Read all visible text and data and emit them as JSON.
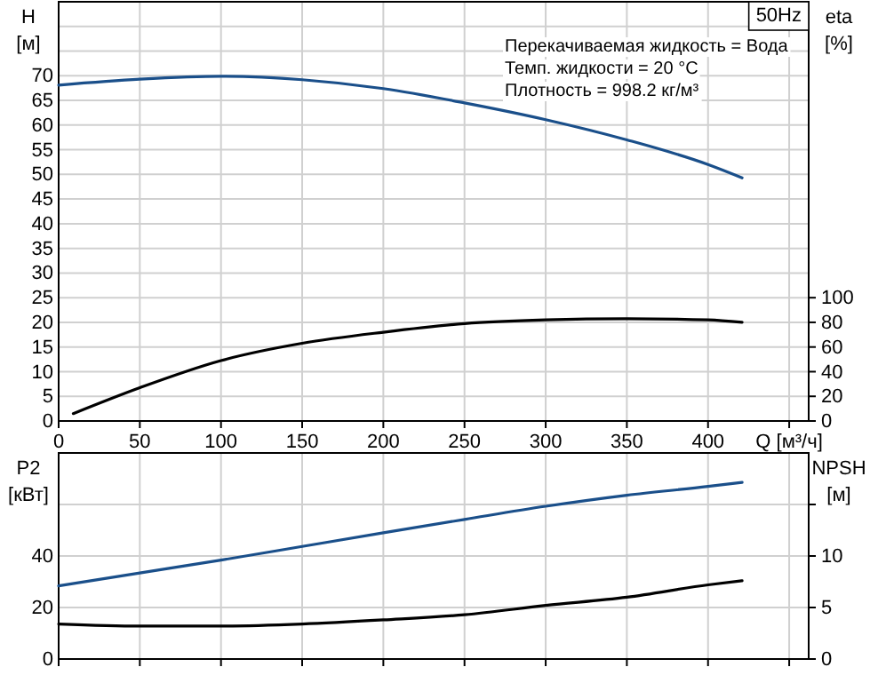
{
  "chart_data": [
    {
      "type": "line",
      "title": "50Hz",
      "xlabel": "Q [м³/ч]",
      "ylabel": "H [м]",
      "y2label": "eta [%]",
      "annotations": [
        "Перекачиваемая жидкость = Вода",
        "Темп. жидкости = 20 °C",
        "Плотность = 998.2 кг/м³"
      ],
      "xlim": [
        0,
        462
      ],
      "xticks": [
        0,
        50,
        100,
        150,
        200,
        250,
        300,
        350,
        400,
        {
          "value": 450,
          "label": null
        }
      ],
      "ylim": [
        0,
        85
      ],
      "yticks": [
        0,
        5,
        10,
        15,
        20,
        25,
        30,
        35,
        40,
        45,
        50,
        55,
        60,
        65,
        70,
        {
          "value": 75,
          "label": null
        },
        {
          "value": 80,
          "label": null
        }
      ],
      "y2lim": [
        0,
        340
      ],
      "y2ticks": [
        0,
        20,
        40,
        60,
        80,
        100
      ],
      "grid": true,
      "series": [
        {
          "color": "#1a4f8a",
          "x": [
            0,
            50,
            100,
            150,
            200,
            250,
            300,
            350,
            400,
            421
          ],
          "values": [
            68.1,
            69.3,
            69.9,
            69.2,
            67.4,
            64.5,
            61.1,
            57,
            52,
            49.3
          ]
        },
        {
          "color": "#000000",
          "axis": "y2",
          "x": [
            9,
            50,
            100,
            150,
            200,
            250,
            300,
            350,
            400,
            421
          ],
          "values": [
            6,
            27,
            49,
            63,
            72,
            79,
            82,
            83,
            82,
            80
          ]
        }
      ]
    },
    {
      "type": "line",
      "ylabel": "P2 [кВт]",
      "y2label": "NPSH [м]",
      "xlim": [
        0,
        462
      ],
      "xticks": [
        0,
        50,
        100,
        150,
        200,
        250,
        300,
        350,
        400,
        450
      ],
      "ylim": [
        0,
        80
      ],
      "yticks": [
        0,
        20,
        40,
        {
          "value": 60,
          "label": null
        }
      ],
      "y2lim": [
        0,
        20
      ],
      "y2ticks": [
        0,
        5,
        10,
        {
          "value": 15,
          "label": null
        }
      ],
      "grid": true,
      "tick_labels": "y",
      "series": [
        {
          "color": "#1a4f8a",
          "x": [
            0,
            50,
            100,
            150,
            200,
            250,
            300,
            350,
            400,
            421
          ],
          "values": [
            28.4,
            33.4,
            38.4,
            43.7,
            49,
            54.2,
            59.3,
            63.6,
            67,
            68.6
          ]
        },
        {
          "color": "#000000",
          "axis": "y2",
          "x": [
            0,
            50,
            100,
            150,
            200,
            250,
            300,
            350,
            400,
            421
          ],
          "values": [
            3.4,
            3.2,
            3.2,
            3.4,
            3.8,
            4.3,
            5.2,
            6,
            7.2,
            7.6
          ]
        }
      ]
    }
  ]
}
